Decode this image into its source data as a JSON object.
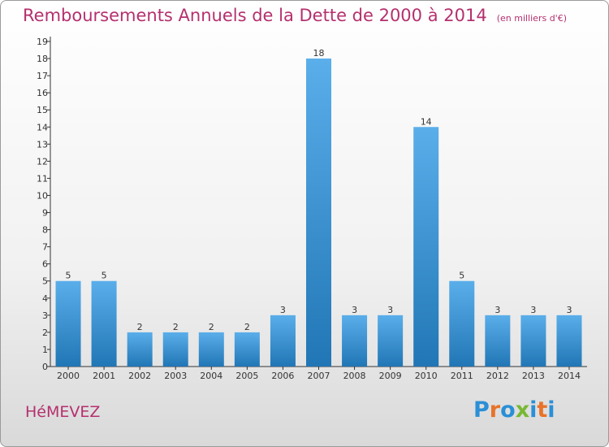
{
  "title": "Remboursements Annuels de la Dette de 2000 à 2014",
  "unit": "(en milliers d'€)",
  "commune": "HéMEVEZ",
  "logo": {
    "text": "Proxiti",
    "colors": [
      "#2a8fd6",
      "#e8732a",
      "#2a8fd6",
      "#78b833",
      "#2a8fd6",
      "#e8732a",
      "#2a8fd6"
    ]
  },
  "colors": {
    "title": "#b5306e",
    "bar_light": "#5aaeea",
    "bar_dark": "#2176b5",
    "axis": "#333333"
  },
  "chart_data": {
    "type": "bar",
    "categories": [
      "2000",
      "2001",
      "2002",
      "2003",
      "2004",
      "2005",
      "2006",
      "2007",
      "2008",
      "2009",
      "2010",
      "2011",
      "2012",
      "2013",
      "2014"
    ],
    "values": [
      5,
      5,
      2,
      2,
      2,
      2,
      3,
      18,
      3,
      3,
      14,
      5,
      3,
      3,
      3
    ],
    "ylim": [
      0,
      19
    ],
    "yticks": [
      0,
      1,
      2,
      3,
      4,
      5,
      6,
      7,
      8,
      9,
      10,
      11,
      12,
      13,
      14,
      15,
      16,
      17,
      18,
      19
    ],
    "grid": false
  }
}
